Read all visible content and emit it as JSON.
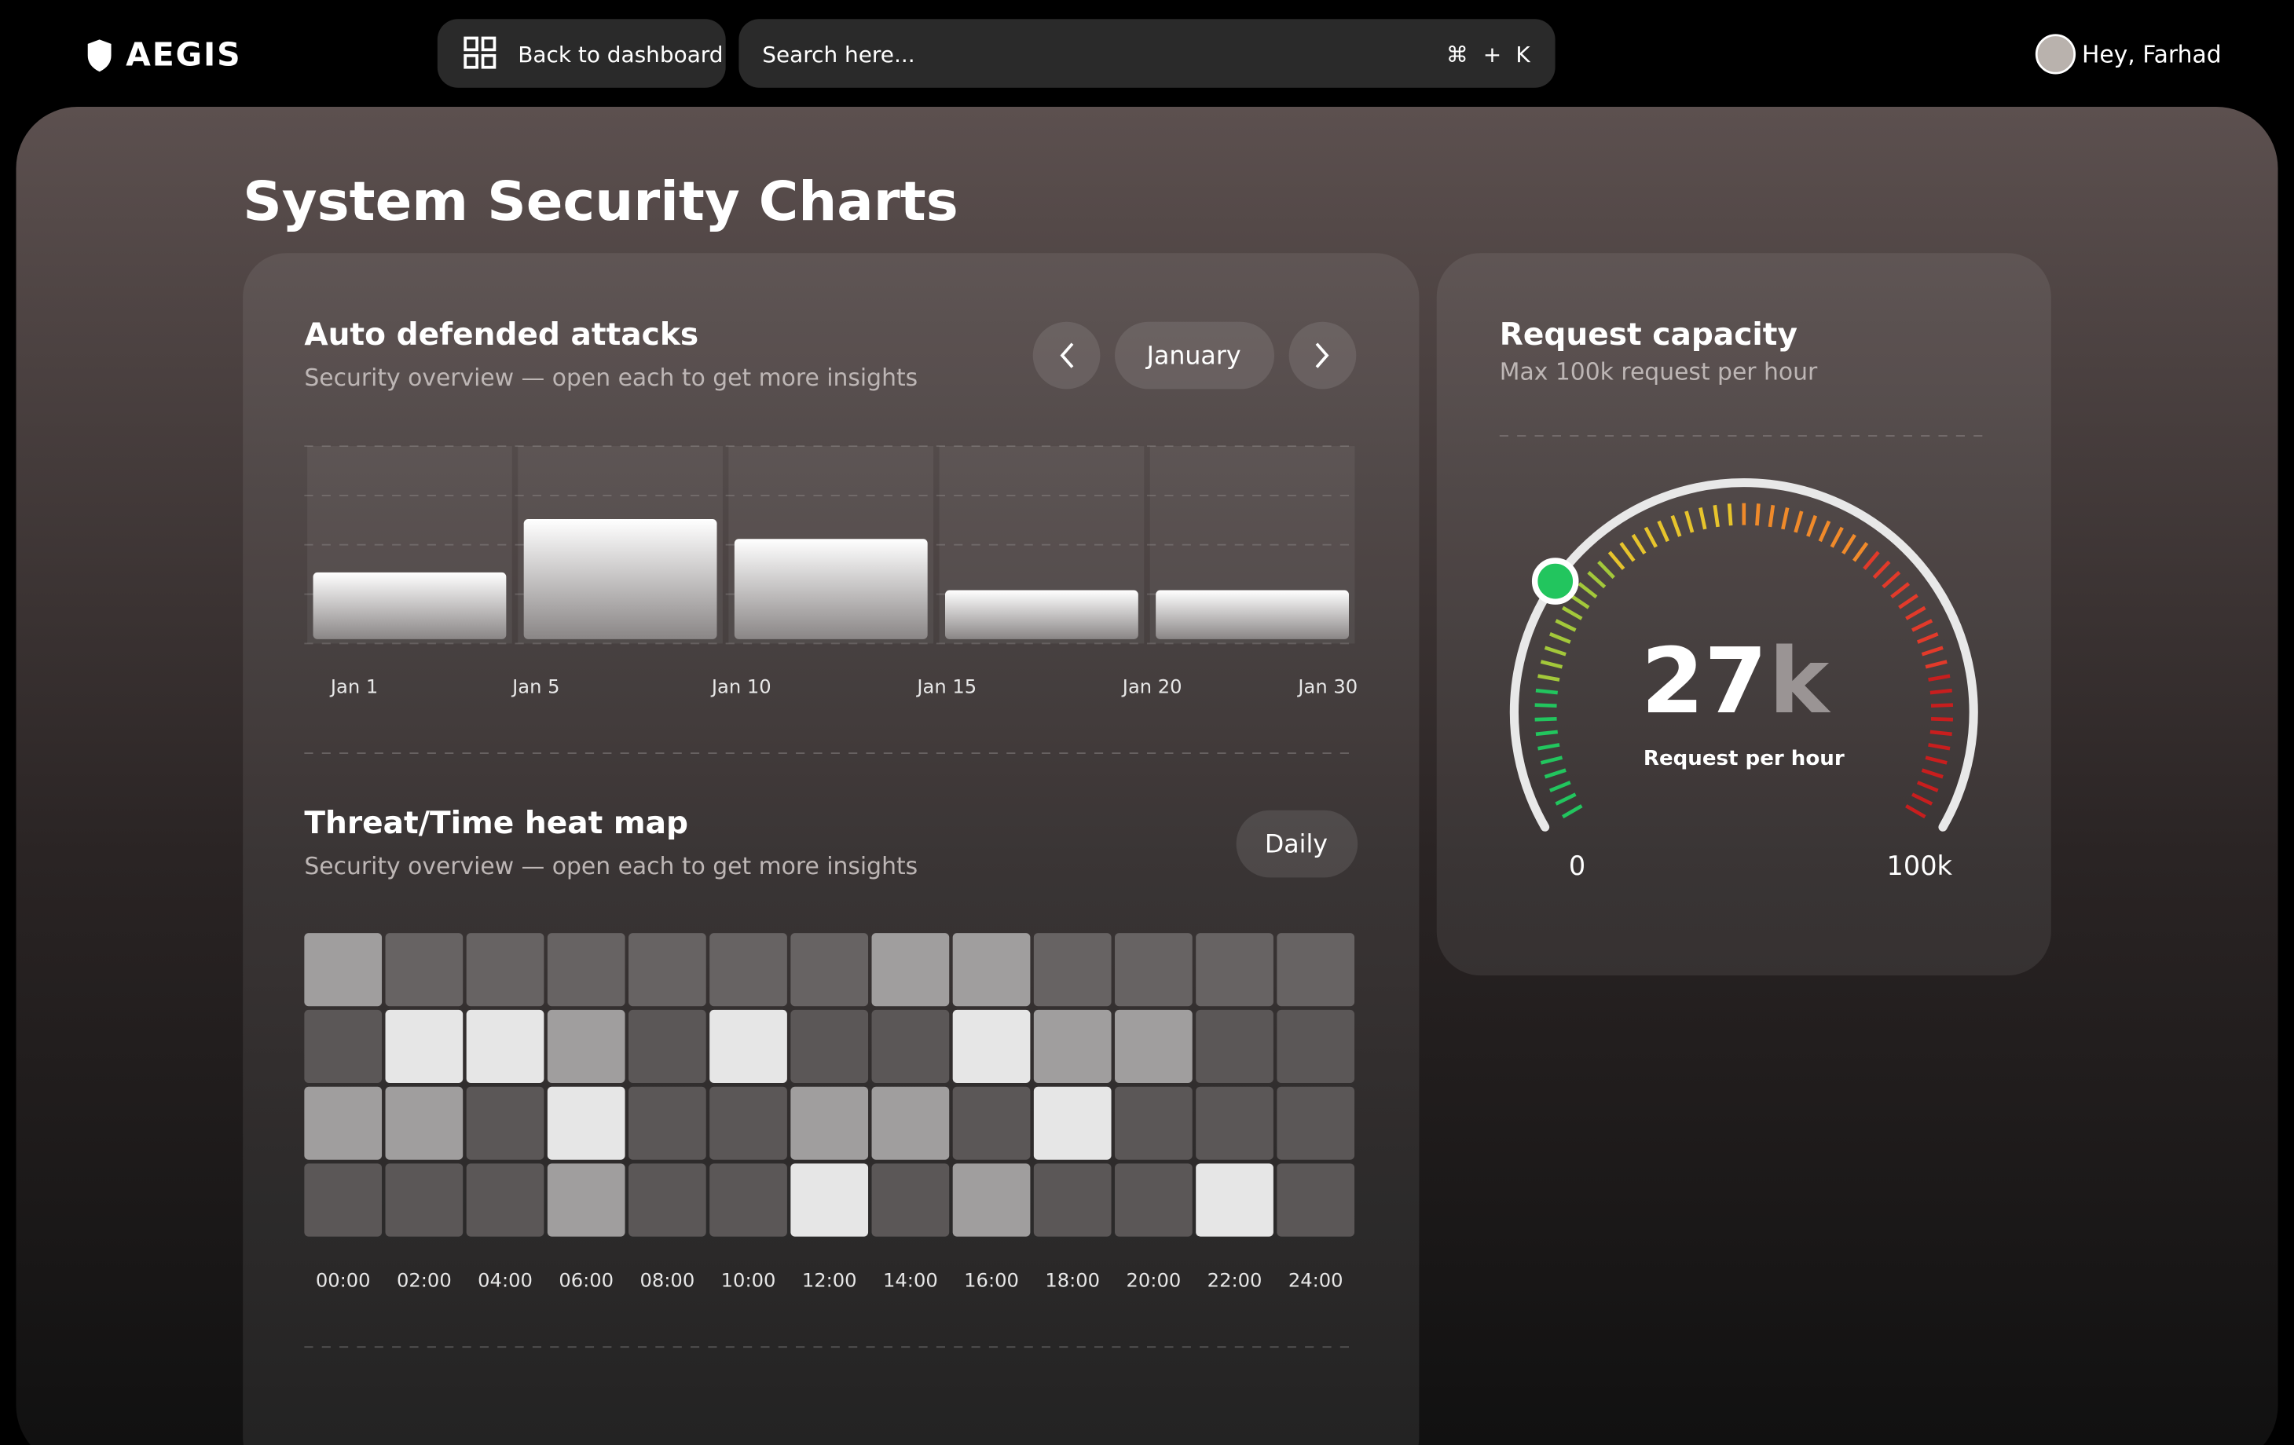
{
  "header": {
    "logo": "AEGIS",
    "back_button": "Back to dashboard",
    "search_placeholder": "Search here...",
    "shortcut": [
      "⌘",
      "+",
      "K"
    ],
    "greeting": "Hey, Farhad"
  },
  "page_title": "System Security Charts",
  "attacks_chart": {
    "type": "bar",
    "title": "Auto defended attacks",
    "subtitle": "Security overview — open each to get more insights",
    "month": "January",
    "x_labels": [
      "Jan 1",
      "Jan 5",
      "Jan 10",
      "Jan 15",
      "Jan 20",
      "Jan 30"
    ],
    "values": [
      36,
      63,
      53,
      27,
      27
    ],
    "ylim": [
      0,
      100
    ],
    "grid": true
  },
  "heatmap": {
    "type": "heatmap",
    "title": "Threat/Time heat map",
    "subtitle": "Security overview — open each to get more insights",
    "period": "Daily",
    "x_labels": [
      "00:00",
      "02:00",
      "04:00",
      "06:00",
      "08:00",
      "10:00",
      "12:00",
      "14:00",
      "16:00",
      "18:00",
      "20:00",
      "22:00",
      "24:00"
    ],
    "level_colors": [
      "#5b5757",
      "#676363",
      "#a09e9e",
      "#e6e6e6"
    ],
    "rows": [
      [
        3,
        2,
        2,
        2,
        2,
        2,
        2,
        3,
        3,
        2,
        2,
        2,
        2
      ],
      [
        1,
        4,
        4,
        3,
        1,
        4,
        1,
        1,
        4,
        3,
        3,
        1,
        1
      ],
      [
        3,
        3,
        1,
        4,
        1,
        1,
        3,
        3,
        1,
        4,
        1,
        1,
        1
      ],
      [
        1,
        1,
        1,
        3,
        1,
        1,
        4,
        1,
        3,
        1,
        1,
        4,
        1
      ]
    ]
  },
  "gauge": {
    "type": "gauge",
    "title": "Request capacity",
    "subtitle": "Max 100k request per hour",
    "value": 27,
    "unit": "k",
    "caption": "Request per hour",
    "min": 0,
    "max": {
      "value": 100,
      "label": "100k"
    },
    "marker_color": "#22c55e"
  }
}
